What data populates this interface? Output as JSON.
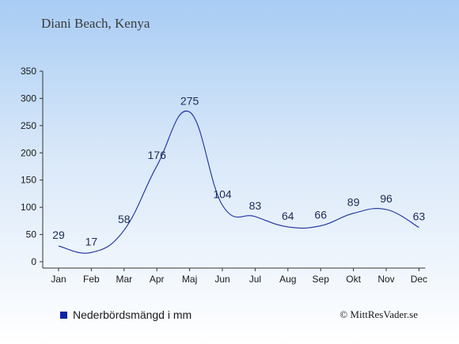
{
  "location": "Diani Beach, Kenya",
  "legend_label": "Nederbördsmängd i mm",
  "credit": "© MittResVader.se",
  "colors": {
    "line": "#1b2fa0",
    "swatch": "#0b23a8",
    "axis": "#333333"
  },
  "chart_data": {
    "type": "line",
    "categories": [
      "Jan",
      "Feb",
      "Mar",
      "Apr",
      "Maj",
      "Jun",
      "Jul",
      "Aug",
      "Sep",
      "Okt",
      "Nov",
      "Dec"
    ],
    "values": [
      29,
      17,
      58,
      176,
      275,
      104,
      83,
      64,
      66,
      89,
      96,
      63
    ],
    "yticks": [
      0,
      50,
      100,
      150,
      200,
      250,
      300,
      350
    ],
    "ylim": [
      0,
      350
    ],
    "title": "",
    "xlabel": "",
    "ylabel": "",
    "grid": false,
    "smooth": true
  }
}
